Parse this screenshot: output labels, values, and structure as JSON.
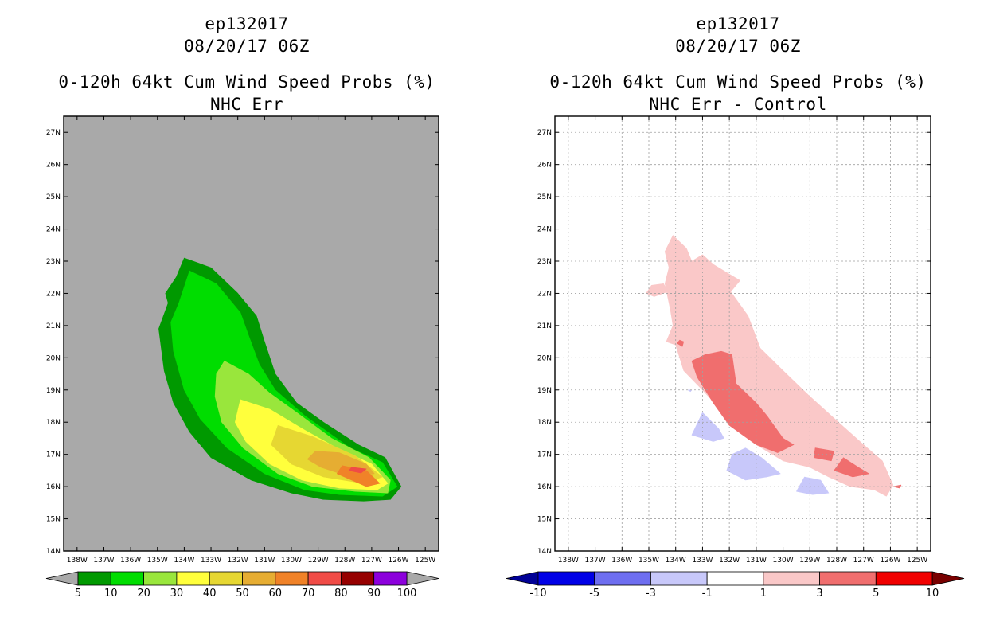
{
  "left": {
    "title_line1": "ep132017",
    "title_line2": "08/20/17 06Z",
    "title_line3": "0-120h 64kt Cum Wind Speed Probs (%)",
    "title_line4": "NHC Err"
  },
  "right": {
    "title_line1": "ep132017",
    "title_line2": "08/20/17 06Z",
    "title_line3": "0-120h 64kt Cum Wind Speed Probs (%)",
    "title_line4": "NHC Err - Control"
  },
  "chart_data": [
    {
      "type": "heatmap",
      "name": "NHC Err",
      "title": "0-120h 64kt Cum Wind Speed Probs (%)",
      "subtitle": "NHC Err",
      "x_ticks": [
        "138W",
        "137W",
        "136W",
        "135W",
        "134W",
        "133W",
        "132W",
        "131W",
        "130W",
        "129W",
        "128W",
        "127W",
        "126W",
        "125W"
      ],
      "y_ticks": [
        "27N",
        "26N",
        "25N",
        "24N",
        "23N",
        "22N",
        "21N",
        "20N",
        "19N",
        "18N",
        "17N",
        "16N",
        "15N",
        "14N"
      ],
      "xlim": [
        -138.5,
        -124.5
      ],
      "ylim": [
        14,
        27.5
      ],
      "grid": false,
      "background_color": "#a9a9a9",
      "colorbar_labels": [
        "5",
        "10",
        "20",
        "30",
        "40",
        "50",
        "60",
        "70",
        "80",
        "90",
        "100"
      ],
      "colorbar_colors": [
        "#009900",
        "#00dd00",
        "#99e63c",
        "#ffff3c",
        "#e6d732",
        "#e6ad32",
        "#f08228",
        "#f04b46",
        "#960000",
        "#8c00dc"
      ],
      "colorbar_end_colors": [
        "#a9a9a9",
        "#a9a9a9"
      ],
      "contours": [
        {
          "level": 5,
          "color": "#009900",
          "polygon": [
            [
              -134,
              23.1
            ],
            [
              -133,
              22.8
            ],
            [
              -132,
              22
            ],
            [
              -131.3,
              21.3
            ],
            [
              -131,
              20.5
            ],
            [
              -130.6,
              19.5
            ],
            [
              -129.8,
              18.6
            ],
            [
              -128.8,
              18
            ],
            [
              -127.5,
              17.3
            ],
            [
              -126.5,
              16.9
            ],
            [
              -125.9,
              16
            ],
            [
              -126.3,
              15.6
            ],
            [
              -127.3,
              15.55
            ],
            [
              -128.8,
              15.6
            ],
            [
              -130,
              15.8
            ],
            [
              -131.5,
              16.2
            ],
            [
              -133,
              16.9
            ],
            [
              -133.8,
              17.7
            ],
            [
              -134.4,
              18.6
            ],
            [
              -134.75,
              19.6
            ],
            [
              -134.95,
              20.9
            ],
            [
              -134.6,
              21.7
            ],
            [
              -134.7,
              22
            ],
            [
              -134.3,
              22.5
            ]
          ]
        },
        {
          "level": 10,
          "color": "#00dd00",
          "polygon": [
            [
              -133.8,
              22.7
            ],
            [
              -132.8,
              22.3
            ],
            [
              -131.9,
              21.4
            ],
            [
              -131.6,
              20.7
            ],
            [
              -131.2,
              19.8
            ],
            [
              -130.6,
              19
            ],
            [
              -129.5,
              18.2
            ],
            [
              -127.8,
              17.2
            ],
            [
              -126.6,
              16.75
            ],
            [
              -126.05,
              16
            ],
            [
              -126.6,
              15.7
            ],
            [
              -128.2,
              15.75
            ],
            [
              -129.5,
              15.9
            ],
            [
              -131,
              16.4
            ],
            [
              -132.4,
              17.2
            ],
            [
              -133.4,
              18.1
            ],
            [
              -134,
              19
            ],
            [
              -134.4,
              20.2
            ],
            [
              -134.5,
              21.1
            ],
            [
              -134.2,
              21.7
            ]
          ]
        },
        {
          "level": 20,
          "color": "#99e63c",
          "polygon": [
            [
              -132.5,
              19.9
            ],
            [
              -131.6,
              19.5
            ],
            [
              -130.8,
              18.9
            ],
            [
              -129.8,
              18.3
            ],
            [
              -128.5,
              17.5
            ],
            [
              -127.1,
              16.9
            ],
            [
              -126.3,
              16.2
            ],
            [
              -126.4,
              15.8
            ],
            [
              -127.6,
              15.85
            ],
            [
              -129.2,
              16
            ],
            [
              -130.5,
              16.4
            ],
            [
              -131.8,
              17.2
            ],
            [
              -132.6,
              18
            ],
            [
              -132.85,
              18.8
            ],
            [
              -132.8,
              19.5
            ]
          ]
        },
        {
          "level": 30,
          "color": "#ffff3c",
          "polygon": [
            [
              -131.9,
              18.7
            ],
            [
              -130.8,
              18.4
            ],
            [
              -129.6,
              17.8
            ],
            [
              -128.3,
              17.2
            ],
            [
              -127,
              16.7
            ],
            [
              -126.4,
              16.1
            ],
            [
              -126.8,
              15.9
            ],
            [
              -128.2,
              15.95
            ],
            [
              -129.6,
              16.2
            ],
            [
              -130.8,
              16.7
            ],
            [
              -131.7,
              17.4
            ],
            [
              -132.1,
              18
            ]
          ]
        },
        {
          "level": 40,
          "color": "#e6d732",
          "polygon": [
            [
              -130.5,
              17.9
            ],
            [
              -129.2,
              17.55
            ],
            [
              -127.6,
              16.95
            ],
            [
              -126.6,
              16.3
            ],
            [
              -127.3,
              16.1
            ],
            [
              -128.8,
              16.3
            ],
            [
              -130,
              16.7
            ],
            [
              -130.75,
              17.3
            ]
          ]
        },
        {
          "level": 50,
          "color": "#e6ad32",
          "polygon": [
            [
              -129.1,
              17.1
            ],
            [
              -128.2,
              17.05
            ],
            [
              -127.2,
              16.7
            ],
            [
              -126.9,
              16.4
            ],
            [
              -127.8,
              16.3
            ],
            [
              -128.9,
              16.6
            ],
            [
              -129.4,
              16.85
            ]
          ]
        },
        {
          "level": 60,
          "color": "#f08228",
          "polygon": [
            [
              -128.1,
              16.65
            ],
            [
              -127.2,
              16.5
            ],
            [
              -126.7,
              16.1
            ],
            [
              -127.2,
              16.0
            ],
            [
              -128.3,
              16.4
            ]
          ]
        },
        {
          "level": 70,
          "color": "#f04b46",
          "polygon": [
            [
              -127.75,
              16.6
            ],
            [
              -127.2,
              16.55
            ],
            [
              -127.4,
              16.42
            ],
            [
              -127.85,
              16.5
            ]
          ]
        }
      ]
    },
    {
      "type": "heatmap",
      "name": "NHC Err - Control",
      "title": "0-120h 64kt Cum Wind Speed Probs (%)",
      "subtitle": "NHC Err - Control",
      "x_ticks": [
        "138W",
        "137W",
        "136W",
        "135W",
        "134W",
        "133W",
        "132W",
        "131W",
        "130W",
        "129W",
        "128W",
        "127W",
        "126W",
        "125W"
      ],
      "y_ticks": [
        "27N",
        "26N",
        "25N",
        "24N",
        "23N",
        "22N",
        "21N",
        "20N",
        "19N",
        "18N",
        "17N",
        "16N",
        "15N",
        "14N"
      ],
      "xlim": [
        -138.5,
        -124.5
      ],
      "ylim": [
        14,
        27.5
      ],
      "grid": true,
      "background_color": "#ffffff",
      "colorbar_labels": [
        "-10",
        "-5",
        "-3",
        "-1",
        "1",
        "3",
        "5",
        "10"
      ],
      "colorbar_colors": [
        "#0000e6",
        "#6e6ef0",
        "#c8c8fa",
        "#ffffff",
        "#fac8c8",
        "#f06e6e",
        "#f00000"
      ],
      "colorbar_end_colors": [
        "#000096",
        "#780000"
      ],
      "contours": [
        {
          "level": 1,
          "color": "#fac8c8",
          "polygon": [
            [
              -134.1,
              23.8
            ],
            [
              -133.6,
              23.4
            ],
            [
              -133.4,
              23.0
            ],
            [
              -133.0,
              23.2
            ],
            [
              -132.6,
              22.9
            ],
            [
              -132.0,
              22.6
            ],
            [
              -131.6,
              22.4
            ],
            [
              -131.95,
              22.05
            ],
            [
              -131.3,
              21.3
            ],
            [
              -130.85,
              20.3
            ],
            [
              -130.0,
              19.6
            ],
            [
              -129.0,
              18.8
            ],
            [
              -127.8,
              17.9
            ],
            [
              -127.0,
              17.3
            ],
            [
              -126.3,
              16.8
            ],
            [
              -125.9,
              16.05
            ],
            [
              -126.15,
              15.7
            ],
            [
              -126.6,
              15.9
            ],
            [
              -127.5,
              16.0
            ],
            [
              -128.3,
              16.3
            ],
            [
              -129.0,
              16.6
            ],
            [
              -130.0,
              16.8
            ],
            [
              -131.0,
              17.3
            ],
            [
              -132.0,
              18.1
            ],
            [
              -133.0,
              19.0
            ],
            [
              -133.7,
              19.6
            ],
            [
              -134.0,
              20.4
            ],
            [
              -134.35,
              20.5
            ],
            [
              -134.1,
              21.0
            ],
            [
              -134.2,
              21.5
            ],
            [
              -134.4,
              22.3
            ],
            [
              -134.25,
              22.8
            ],
            [
              -134.4,
              23.3
            ]
          ]
        },
        {
          "level": 1,
          "color": "#fac8c8",
          "polygon": [
            [
              -134.9,
              22.25
            ],
            [
              -134.45,
              22.3
            ],
            [
              -134.3,
              22.05
            ],
            [
              -134.8,
              21.9
            ],
            [
              -135.1,
              22.0
            ]
          ]
        },
        {
          "level": 3,
          "color": "#f06e6e",
          "polygon": [
            [
              -132.9,
              20.1
            ],
            [
              -132.3,
              20.2
            ],
            [
              -131.9,
              20.1
            ],
            [
              -131.75,
              19.2
            ],
            [
              -131.0,
              18.6
            ],
            [
              -130.6,
              18.2
            ],
            [
              -130.0,
              17.5
            ],
            [
              -129.6,
              17.3
            ],
            [
              -130.2,
              17.05
            ],
            [
              -131.0,
              17.3
            ],
            [
              -132.0,
              17.9
            ],
            [
              -132.6,
              18.6
            ],
            [
              -133.2,
              19.4
            ],
            [
              -133.4,
              19.9
            ]
          ]
        },
        {
          "level": 3,
          "color": "#f06e6e",
          "polygon": [
            [
              -128.8,
              17.2
            ],
            [
              -128.1,
              17.1
            ],
            [
              -128.2,
              16.8
            ],
            [
              -128.85,
              16.9
            ]
          ]
        },
        {
          "level": 3,
          "color": "#f06e6e",
          "polygon": [
            [
              -127.75,
              16.9
            ],
            [
              -127.2,
              16.6
            ],
            [
              -126.8,
              16.4
            ],
            [
              -127.4,
              16.3
            ],
            [
              -128.1,
              16.5
            ]
          ]
        },
        {
          "level": 3,
          "color": "#f06e6e",
          "polygon": [
            [
              -133.85,
              20.55
            ],
            [
              -133.7,
              20.5
            ],
            [
              -133.75,
              20.35
            ],
            [
              -133.95,
              20.45
            ]
          ]
        },
        {
          "level": 3,
          "color": "#f06e6e",
          "polygon": [
            [
              -125.6,
              16.05
            ],
            [
              -125.9,
              16.0
            ],
            [
              -125.65,
              15.95
            ]
          ]
        },
        {
          "level": -1,
          "color": "#c8c8fa",
          "polygon": [
            [
              -133.0,
              18.3
            ],
            [
              -132.4,
              17.8
            ],
            [
              -132.2,
              17.5
            ],
            [
              -132.6,
              17.4
            ],
            [
              -133.4,
              17.6
            ]
          ]
        },
        {
          "level": -1,
          "color": "#c8c8fa",
          "polygon": [
            [
              -131.4,
              17.2
            ],
            [
              -130.8,
              16.9
            ],
            [
              -130.1,
              16.4
            ],
            [
              -130.6,
              16.3
            ],
            [
              -131.4,
              16.2
            ],
            [
              -132.1,
              16.5
            ],
            [
              -131.9,
              17.0
            ]
          ]
        },
        {
          "level": -1,
          "color": "#c8c8fa",
          "polygon": [
            [
              -129.2,
              16.3
            ],
            [
              -128.6,
              16.2
            ],
            [
              -128.3,
              15.8
            ],
            [
              -128.9,
              15.75
            ],
            [
              -129.5,
              15.85
            ]
          ]
        },
        {
          "level": -1,
          "color": "#c8c8fa",
          "polygon": [
            [
              -133.55,
              19.0
            ],
            [
              -133.4,
              19.0
            ],
            [
              -133.45,
              18.95
            ]
          ]
        }
      ]
    }
  ]
}
